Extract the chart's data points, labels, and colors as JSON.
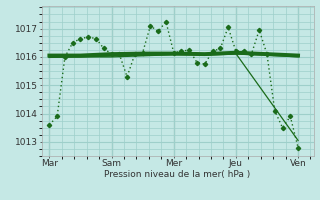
{
  "background_color": "#c5e8e5",
  "grid_color": "#9ecfca",
  "line_color": "#1a6b1a",
  "title": "Pression niveau de la mer( hPa )",
  "ylim": [
    1012.5,
    1017.8
  ],
  "yticks": [
    1013,
    1014,
    1015,
    1016,
    1017
  ],
  "day_labels": [
    "Mar",
    "Sam",
    "Mer",
    "Jeu",
    "Ven"
  ],
  "day_positions": [
    0,
    40,
    80,
    120,
    160
  ],
  "vline_positions": [
    0,
    40,
    80,
    120,
    160
  ],
  "xlim": [
    -5,
    170
  ],
  "series": [
    {
      "name": "dotted_main",
      "x": [
        0,
        5,
        10,
        15,
        20,
        25,
        30,
        35,
        40,
        45,
        50,
        55,
        60,
        65,
        70,
        75,
        80,
        85,
        90,
        95,
        100,
        105,
        110,
        115,
        120,
        125,
        130,
        135,
        140,
        145,
        150,
        155,
        160
      ],
      "y": [
        1013.6,
        1013.9,
        1016.0,
        1016.5,
        1016.65,
        1016.7,
        1016.65,
        1016.3,
        1016.1,
        1016.1,
        1015.3,
        1016.1,
        1016.15,
        1017.1,
        1016.9,
        1017.25,
        1016.15,
        1016.2,
        1016.25,
        1015.8,
        1015.75,
        1016.2,
        1016.3,
        1017.05,
        1016.2,
        1016.2,
        1016.1,
        1016.95,
        1016.1,
        1014.1,
        1013.5,
        1013.9,
        1012.8
      ],
      "style": "dotted",
      "marker": "D",
      "markersize": 2.2,
      "linewidth": 1.0
    },
    {
      "name": "smooth_thick",
      "x": [
        0,
        20,
        40,
        60,
        80,
        100,
        120,
        140,
        160
      ],
      "y": [
        1016.05,
        1016.05,
        1016.1,
        1016.12,
        1016.12,
        1016.1,
        1016.15,
        1016.1,
        1016.05
      ],
      "style": "solid",
      "marker": null,
      "markersize": 0,
      "linewidth": 2.8
    },
    {
      "name": "smooth_medium",
      "x": [
        0,
        20,
        40,
        60,
        80,
        100,
        120,
        140,
        160
      ],
      "y": [
        1016.0,
        1016.02,
        1016.05,
        1016.08,
        1016.1,
        1016.08,
        1016.12,
        1016.08,
        1016.02
      ],
      "style": "solid",
      "marker": null,
      "markersize": 0,
      "linewidth": 1.6
    },
    {
      "name": "trend_down",
      "x": [
        0,
        40,
        80,
        120,
        160
      ],
      "y": [
        1016.0,
        1016.0,
        1016.08,
        1016.12,
        1013.05
      ],
      "style": "solid",
      "marker": null,
      "markersize": 0,
      "linewidth": 0.9
    }
  ]
}
